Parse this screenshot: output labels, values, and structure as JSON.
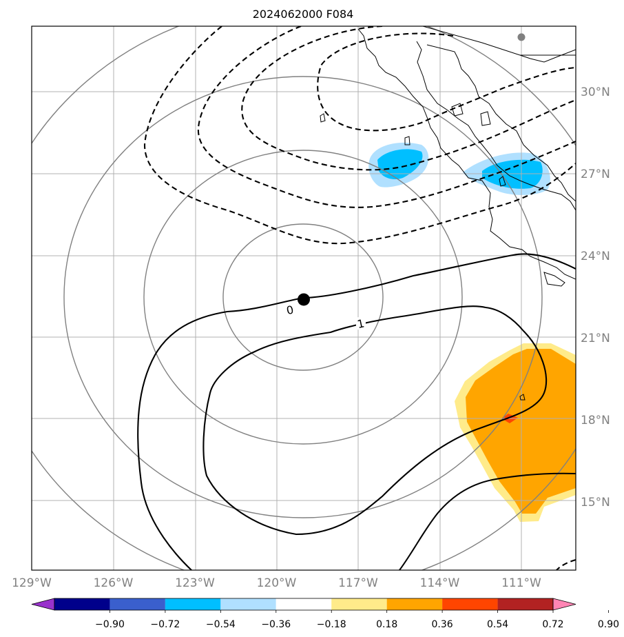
{
  "chart_data": {
    "type": "contour-map",
    "title": "2024062000 F084",
    "x_ticks": [
      "129°W",
      "126°W",
      "123°W",
      "120°W",
      "117°W",
      "114°W",
      "111°W"
    ],
    "x_values": [
      -129,
      -126,
      -123,
      -120,
      -117,
      -114,
      -111
    ],
    "y_ticks": [
      "30°N",
      "27°N",
      "24°N",
      "21°N",
      "18°N",
      "15°N"
    ],
    "y_values": [
      30,
      27,
      24,
      21,
      18,
      15
    ],
    "xlim": [
      -129,
      -109
    ],
    "ylim": [
      12.5,
      32.4
    ],
    "grid": true,
    "center_marker": {
      "lon": -119.0,
      "lat": 22.4,
      "color": "#000000"
    },
    "secondary_marker": {
      "lon": -111.0,
      "lat": 32.0,
      "color": "#808080"
    },
    "contour_labels": [
      {
        "text": "0",
        "lon": -119.5,
        "lat": 22.0
      },
      {
        "text": "1",
        "lon": -116.9,
        "lat": 21.5
      }
    ],
    "colorbar": {
      "levels": [
        "−0.90",
        "−0.72",
        "−0.54",
        "−0.36",
        "−0.18",
        "0.18",
        "0.36",
        "0.54",
        "0.72",
        "0.90"
      ],
      "colors": [
        "#9932cc",
        "#00008b",
        "#3a5fcd",
        "#00bfff",
        "#b0e0ff",
        "#ffffff",
        "#ffeb8a",
        "#ffa500",
        "#ff4500",
        "#b22222",
        "#ff85b4"
      ],
      "extend": "both"
    }
  }
}
